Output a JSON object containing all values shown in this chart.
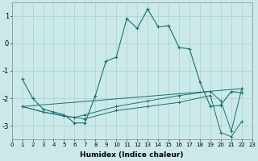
{
  "xlabel": "Humidex (Indice chaleur)",
  "background_color": "#cce9ea",
  "grid_color": "#aed4d4",
  "line_color": "#1a7070",
  "xlim": [
    0,
    23
  ],
  "ylim": [
    -3.5,
    1.5
  ],
  "yticks": [
    -3,
    -2,
    -1,
    0,
    1
  ],
  "xticks": [
    0,
    1,
    2,
    3,
    4,
    5,
    6,
    7,
    8,
    9,
    10,
    11,
    12,
    13,
    14,
    15,
    16,
    17,
    18,
    19,
    20,
    21,
    22,
    23
  ],
  "series": [
    {
      "x": [
        1,
        2,
        3,
        4,
        5,
        6,
        7,
        8,
        9,
        10,
        11,
        12,
        13,
        14,
        15,
        16,
        17,
        18,
        19,
        20,
        21,
        22
      ],
      "y": [
        -1.3,
        -2.0,
        -2.4,
        -2.5,
        -2.6,
        -2.9,
        -2.9,
        -1.9,
        -0.65,
        -0.5,
        0.9,
        0.55,
        1.25,
        0.6,
        0.65,
        -0.15,
        -0.2,
        -1.4,
        -2.3,
        -2.25,
        -1.75,
        -1.8
      ]
    },
    {
      "x": [
        1,
        22
      ],
      "y": [
        -2.3,
        -1.65
      ]
    },
    {
      "x": [
        1,
        3,
        6,
        7,
        10,
        13,
        16,
        19,
        20,
        21,
        22
      ],
      "y": [
        -2.3,
        -2.5,
        -2.7,
        -2.6,
        -2.3,
        -2.1,
        -1.9,
        -1.75,
        -2.1,
        -3.2,
        -1.65
      ]
    },
    {
      "x": [
        1,
        3,
        5,
        7,
        10,
        13,
        16,
        19,
        20,
        21,
        22
      ],
      "y": [
        -2.3,
        -2.5,
        -2.65,
        -2.75,
        -2.45,
        -2.3,
        -2.15,
        -1.9,
        -3.25,
        -3.4,
        -2.85
      ]
    }
  ]
}
